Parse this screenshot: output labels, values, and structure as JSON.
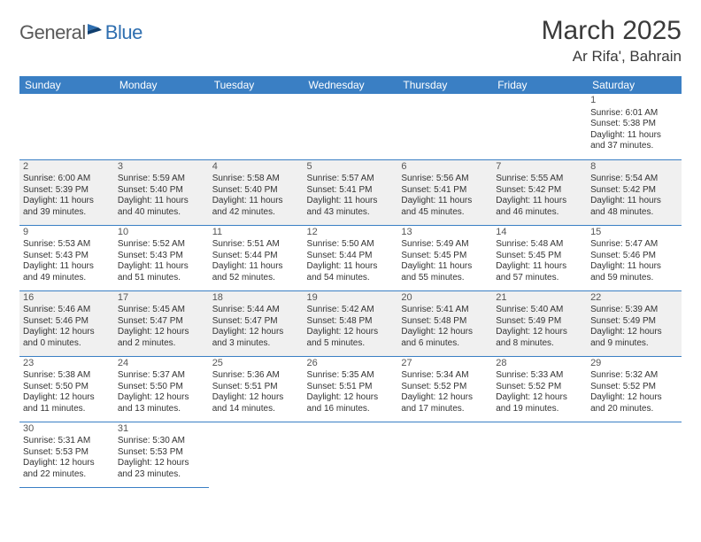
{
  "logo": {
    "part1": "General",
    "part2": "Blue"
  },
  "title": "March 2025",
  "location": "Ar Rifa', Bahrain",
  "colors": {
    "header_bg": "#3a7fc4",
    "header_text": "#ffffff",
    "border": "#3a7fc4",
    "shaded_bg": "#f0f0f0",
    "logo_gray": "#5a5a5a",
    "logo_blue": "#2f6fb0"
  },
  "day_headers": [
    "Sunday",
    "Monday",
    "Tuesday",
    "Wednesday",
    "Thursday",
    "Friday",
    "Saturday"
  ],
  "weeks": [
    [
      null,
      null,
      null,
      null,
      null,
      null,
      {
        "n": "1",
        "sr": "6:01 AM",
        "ss": "5:38 PM",
        "dl": "11 hours and 37 minutes."
      }
    ],
    [
      {
        "n": "2",
        "sr": "6:00 AM",
        "ss": "5:39 PM",
        "dl": "11 hours and 39 minutes."
      },
      {
        "n": "3",
        "sr": "5:59 AM",
        "ss": "5:40 PM",
        "dl": "11 hours and 40 minutes."
      },
      {
        "n": "4",
        "sr": "5:58 AM",
        "ss": "5:40 PM",
        "dl": "11 hours and 42 minutes."
      },
      {
        "n": "5",
        "sr": "5:57 AM",
        "ss": "5:41 PM",
        "dl": "11 hours and 43 minutes."
      },
      {
        "n": "6",
        "sr": "5:56 AM",
        "ss": "5:41 PM",
        "dl": "11 hours and 45 minutes."
      },
      {
        "n": "7",
        "sr": "5:55 AM",
        "ss": "5:42 PM",
        "dl": "11 hours and 46 minutes."
      },
      {
        "n": "8",
        "sr": "5:54 AM",
        "ss": "5:42 PM",
        "dl": "11 hours and 48 minutes."
      }
    ],
    [
      {
        "n": "9",
        "sr": "5:53 AM",
        "ss": "5:43 PM",
        "dl": "11 hours and 49 minutes."
      },
      {
        "n": "10",
        "sr": "5:52 AM",
        "ss": "5:43 PM",
        "dl": "11 hours and 51 minutes."
      },
      {
        "n": "11",
        "sr": "5:51 AM",
        "ss": "5:44 PM",
        "dl": "11 hours and 52 minutes."
      },
      {
        "n": "12",
        "sr": "5:50 AM",
        "ss": "5:44 PM",
        "dl": "11 hours and 54 minutes."
      },
      {
        "n": "13",
        "sr": "5:49 AM",
        "ss": "5:45 PM",
        "dl": "11 hours and 55 minutes."
      },
      {
        "n": "14",
        "sr": "5:48 AM",
        "ss": "5:45 PM",
        "dl": "11 hours and 57 minutes."
      },
      {
        "n": "15",
        "sr": "5:47 AM",
        "ss": "5:46 PM",
        "dl": "11 hours and 59 minutes."
      }
    ],
    [
      {
        "n": "16",
        "sr": "5:46 AM",
        "ss": "5:46 PM",
        "dl": "12 hours and 0 minutes."
      },
      {
        "n": "17",
        "sr": "5:45 AM",
        "ss": "5:47 PM",
        "dl": "12 hours and 2 minutes."
      },
      {
        "n": "18",
        "sr": "5:44 AM",
        "ss": "5:47 PM",
        "dl": "12 hours and 3 minutes."
      },
      {
        "n": "19",
        "sr": "5:42 AM",
        "ss": "5:48 PM",
        "dl": "12 hours and 5 minutes."
      },
      {
        "n": "20",
        "sr": "5:41 AM",
        "ss": "5:48 PM",
        "dl": "12 hours and 6 minutes."
      },
      {
        "n": "21",
        "sr": "5:40 AM",
        "ss": "5:49 PM",
        "dl": "12 hours and 8 minutes."
      },
      {
        "n": "22",
        "sr": "5:39 AM",
        "ss": "5:49 PM",
        "dl": "12 hours and 9 minutes."
      }
    ],
    [
      {
        "n": "23",
        "sr": "5:38 AM",
        "ss": "5:50 PM",
        "dl": "12 hours and 11 minutes."
      },
      {
        "n": "24",
        "sr": "5:37 AM",
        "ss": "5:50 PM",
        "dl": "12 hours and 13 minutes."
      },
      {
        "n": "25",
        "sr": "5:36 AM",
        "ss": "5:51 PM",
        "dl": "12 hours and 14 minutes."
      },
      {
        "n": "26",
        "sr": "5:35 AM",
        "ss": "5:51 PM",
        "dl": "12 hours and 16 minutes."
      },
      {
        "n": "27",
        "sr": "5:34 AM",
        "ss": "5:52 PM",
        "dl": "12 hours and 17 minutes."
      },
      {
        "n": "28",
        "sr": "5:33 AM",
        "ss": "5:52 PM",
        "dl": "12 hours and 19 minutes."
      },
      {
        "n": "29",
        "sr": "5:32 AM",
        "ss": "5:52 PM",
        "dl": "12 hours and 20 minutes."
      }
    ],
    [
      {
        "n": "30",
        "sr": "5:31 AM",
        "ss": "5:53 PM",
        "dl": "12 hours and 22 minutes."
      },
      {
        "n": "31",
        "sr": "5:30 AM",
        "ss": "5:53 PM",
        "dl": "12 hours and 23 minutes."
      },
      null,
      null,
      null,
      null,
      null
    ]
  ],
  "labels": {
    "sunrise": "Sunrise:",
    "sunset": "Sunset:",
    "daylight": "Daylight:"
  },
  "shaded_rows": [
    1,
    3
  ]
}
